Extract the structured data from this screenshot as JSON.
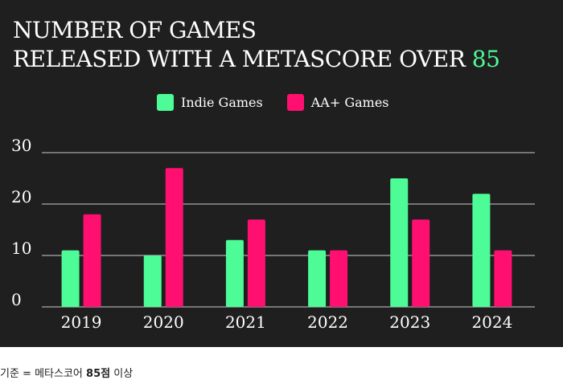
{
  "title_line1": "NUMBER OF GAMES",
  "title_line2": "RELEASED WITH A METASCORE OVER",
  "title_accent": "85",
  "footnote_prefix": "기준 = 메타스코어",
  "footnote_bold": "85점",
  "footnote_suffix": "이상",
  "colors": {
    "background": "#1f1f1f",
    "indie": "#4dfc96",
    "aa": "#ff0f6f",
    "grid": "#cccccc",
    "text": "#ffffff"
  },
  "chart_data": {
    "type": "bar",
    "categories": [
      "2019",
      "2020",
      "2021",
      "2022",
      "2023",
      "2024"
    ],
    "series": [
      {
        "name": "Indie Games",
        "values": [
          11,
          10,
          13,
          11,
          25,
          22
        ]
      },
      {
        "name": "AA+ Games",
        "values": [
          18,
          27,
          17,
          11,
          17,
          11
        ]
      }
    ],
    "yticks": [
      0,
      10,
      20,
      30
    ],
    "ylim": [
      0,
      30
    ],
    "grid": true,
    "legend_position": "top-center"
  }
}
